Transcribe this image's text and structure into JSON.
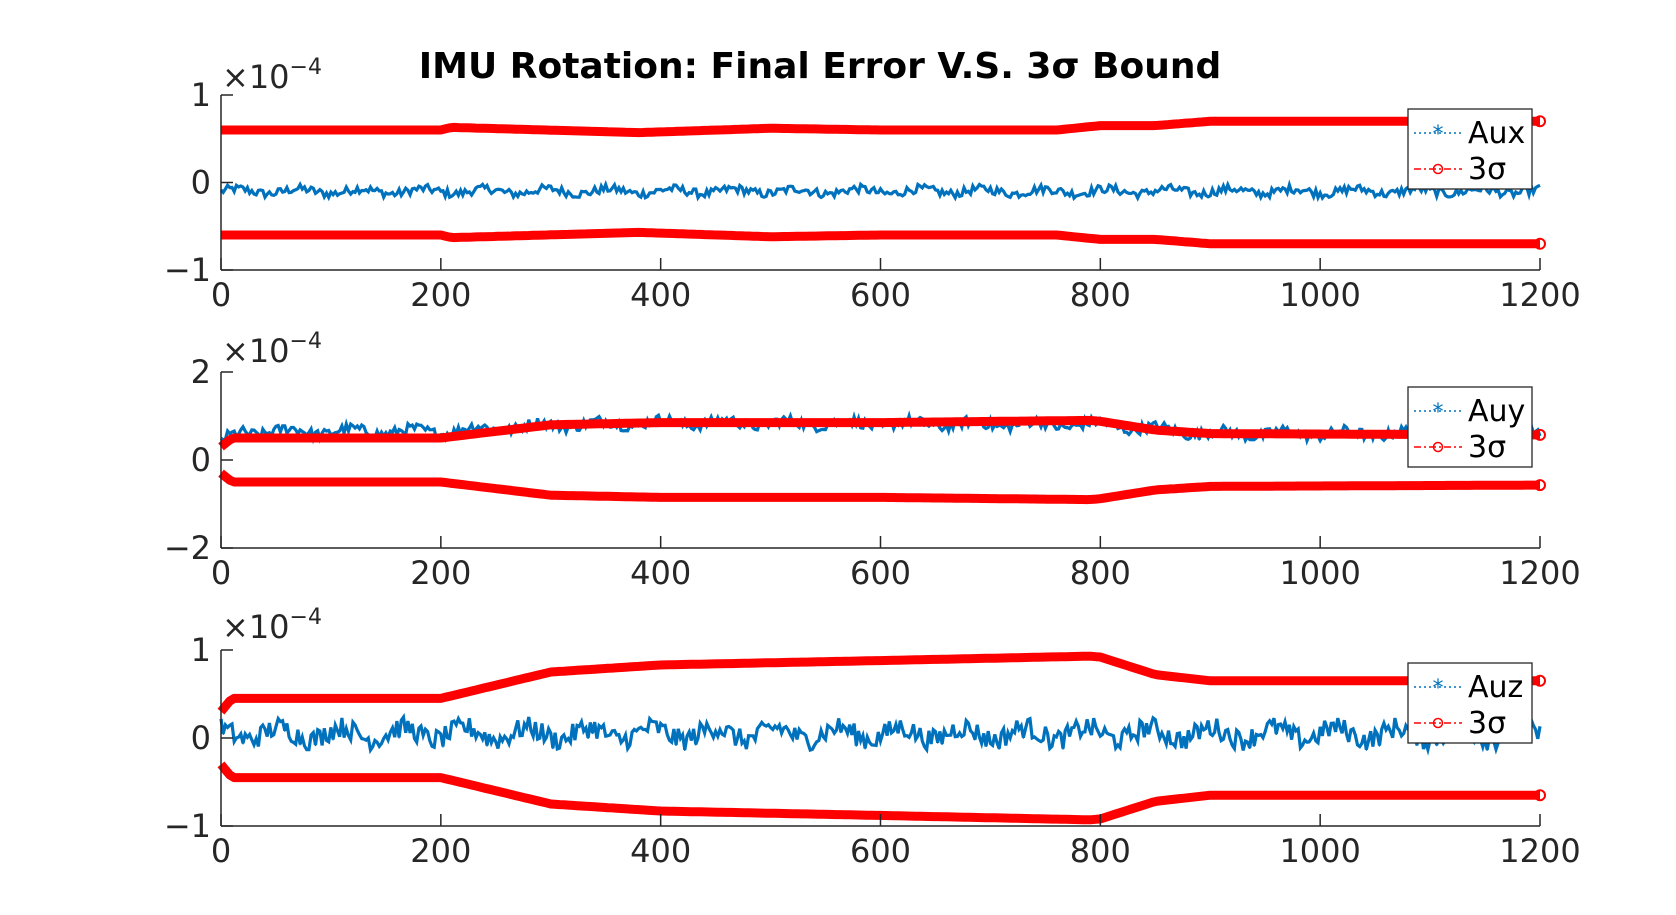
{
  "chart_data": [
    {
      "type": "line",
      "title": "IMU Rotation: Final Error V.S. 3σ Bound",
      "x_ticks": [
        "0",
        "200",
        "400",
        "600",
        "800",
        "1000",
        "1200"
      ],
      "y_ticks": [
        "−1",
        "0",
        "1"
      ],
      "exponent_base": "×10",
      "exponent_power": "−4",
      "xlim": [
        0,
        1200
      ],
      "ylim": [
        -1,
        1
      ],
      "legend_position": "top-right",
      "legend": [
        {
          "label": "Aux",
          "marker": "asterisk",
          "style": "dotted",
          "color": "#0072BD"
        },
        {
          "label": "3σ",
          "marker": "circle",
          "style": "dash-dot",
          "color": "#FF0000"
        }
      ],
      "error_series": {
        "name": "Aux",
        "mean": -0.1,
        "noise": 0.05,
        "color": "#0072BD"
      },
      "bound_series": {
        "name": "3σ",
        "color": "#FF0000",
        "points": [
          [
            0,
            0.6
          ],
          [
            200,
            0.6
          ],
          [
            210,
            0.63
          ],
          [
            380,
            0.57
          ],
          [
            500,
            0.62
          ],
          [
            600,
            0.6
          ],
          [
            760,
            0.6
          ],
          [
            800,
            0.65
          ],
          [
            850,
            0.65
          ],
          [
            900,
            0.7
          ],
          [
            1200,
            0.7
          ]
        ]
      }
    },
    {
      "type": "line",
      "title": "",
      "x_ticks": [
        "0",
        "200",
        "400",
        "600",
        "800",
        "1000",
        "1200"
      ],
      "y_ticks": [
        "−2",
        "0",
        "2"
      ],
      "exponent_base": "×10",
      "exponent_power": "−4",
      "xlim": [
        0,
        1200
      ],
      "ylim": [
        -2,
        2
      ],
      "legend_position": "top-right",
      "legend": [
        {
          "label": "Auy",
          "marker": "asterisk",
          "style": "dotted",
          "color": "#0072BD"
        },
        {
          "label": "3σ",
          "marker": "circle",
          "style": "dash-dot",
          "color": "#FF0000"
        }
      ],
      "error_series": {
        "name": "Auy",
        "noise": 0.12,
        "color": "#0072BD",
        "mean_points": [
          [
            0,
            0.4
          ],
          [
            20,
            0.65
          ],
          [
            200,
            0.65
          ],
          [
            300,
            0.8
          ],
          [
            400,
            0.85
          ],
          [
            800,
            0.8
          ],
          [
            900,
            0.6
          ],
          [
            1200,
            0.6
          ]
        ]
      },
      "bound_series": {
        "name": "3σ",
        "color": "#FF0000",
        "points": [
          [
            0,
            0.3
          ],
          [
            10,
            0.5
          ],
          [
            200,
            0.5
          ],
          [
            300,
            0.8
          ],
          [
            400,
            0.85
          ],
          [
            600,
            0.85
          ],
          [
            790,
            0.9
          ],
          [
            800,
            0.88
          ],
          [
            850,
            0.68
          ],
          [
            900,
            0.6
          ],
          [
            1200,
            0.57
          ]
        ]
      }
    },
    {
      "type": "line",
      "title": "",
      "x_ticks": [
        "0",
        "200",
        "400",
        "600",
        "800",
        "1000",
        "1200"
      ],
      "y_ticks": [
        "−1",
        "0",
        "1"
      ],
      "exponent_base": "×10",
      "exponent_power": "−4",
      "xlim": [
        0,
        1200
      ],
      "ylim": [
        -1,
        1
      ],
      "legend_position": "top-right",
      "legend": [
        {
          "label": "Auz",
          "marker": "asterisk",
          "style": "dotted",
          "color": "#0072BD"
        },
        {
          "label": "3σ",
          "marker": "circle",
          "style": "dash-dot",
          "color": "#FF0000"
        }
      ],
      "error_series": {
        "name": "Auz",
        "mean": 0.05,
        "noise": 0.12,
        "color": "#0072BD"
      },
      "bound_series": {
        "name": "3σ",
        "color": "#FF0000",
        "points": [
          [
            0,
            0.3
          ],
          [
            10,
            0.45
          ],
          [
            200,
            0.45
          ],
          [
            300,
            0.75
          ],
          [
            400,
            0.83
          ],
          [
            600,
            0.88
          ],
          [
            790,
            0.93
          ],
          [
            800,
            0.92
          ],
          [
            850,
            0.72
          ],
          [
            900,
            0.65
          ],
          [
            1200,
            0.65
          ]
        ]
      }
    }
  ]
}
